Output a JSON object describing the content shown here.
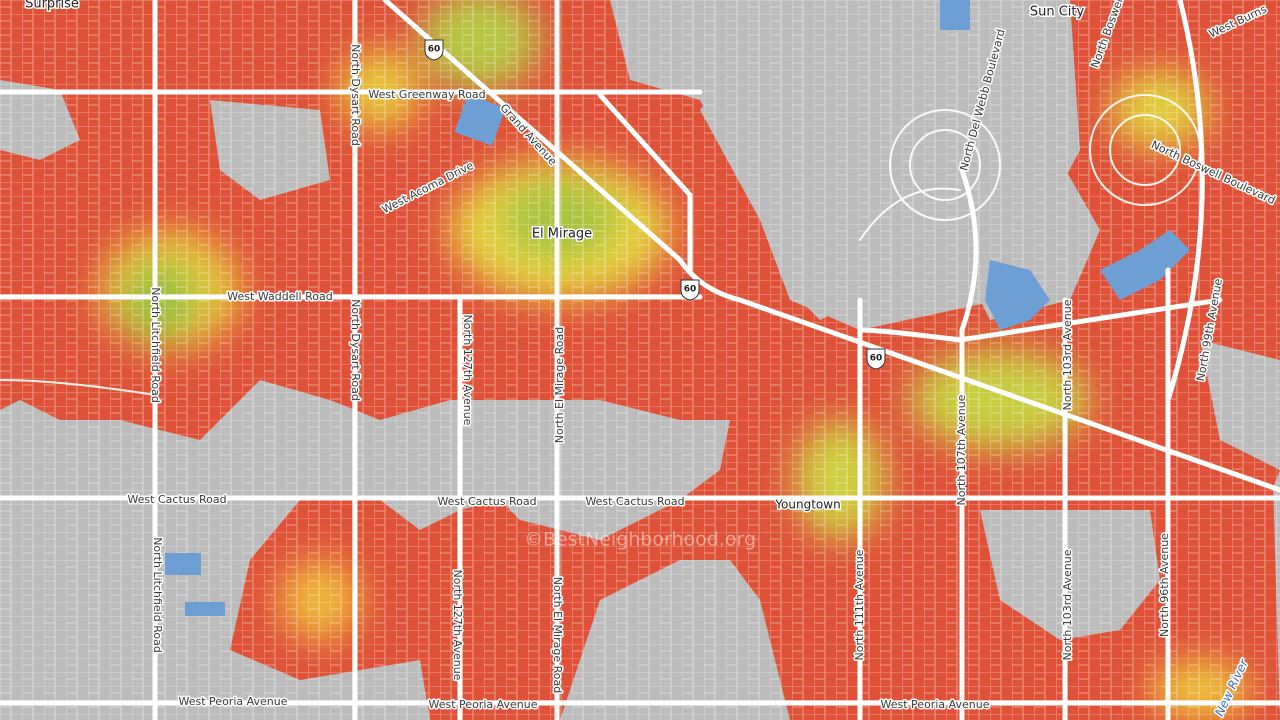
{
  "places": {
    "surprise": "Surprise",
    "sun_city": "Sun City",
    "el_mirage": "El Mirage",
    "youngtown": "Youngtown"
  },
  "roads": {
    "greenway": "West Greenway Road",
    "grand": "Grand Avenue",
    "acoma": "West Acoma Drive",
    "waddell": "West Waddell Road",
    "dysart": "North Dysart Road",
    "litchfield": "North Litchfield Road",
    "ave127": "North 127th Avenue",
    "el_mirage_rd": "North El Mirage Road",
    "cactus": "West Cactus Road",
    "peoria": "West Peoria Avenue",
    "del_webb": "North Del Webb Boulevard",
    "boswell": "North Boswell Boulevard",
    "boswell_cut": "North Boswell",
    "burns_cut": "West Burns",
    "ave107": "North 107th Avenue",
    "ave111": "North 111th Avenue",
    "ave103": "North 103rd Avenue",
    "ave99": "North 99th Avenue",
    "ave96": "North 96th Avenue",
    "new_river": "New River"
  },
  "shield": "60",
  "watermark": "©BestNeighborhood.org"
}
